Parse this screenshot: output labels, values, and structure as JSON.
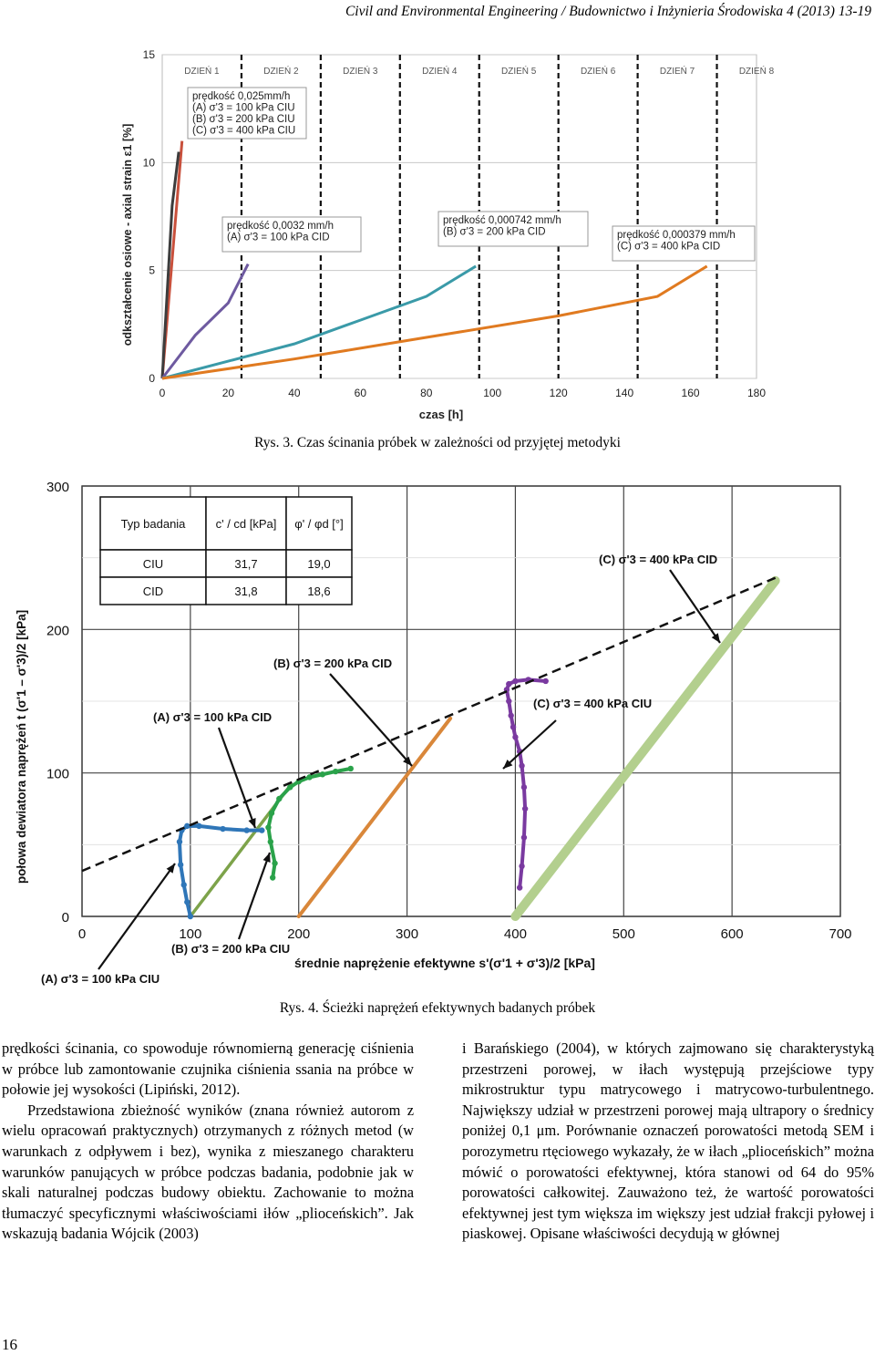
{
  "header": "Civil and Environmental Engineering / Budownictwo i Inżynieria Środowiska  4 (2013) 13-19",
  "figure3": {
    "caption": "Rys. 3. Czas ścinania próbek w zależności od przyjętej metodyki",
    "chart_data": {
      "type": "line",
      "xlabel": "czas [h]",
      "ylabel": "odkształcenie osiowe - axial strain ε1 [%]",
      "xlim": [
        0,
        180
      ],
      "ylim": [
        0,
        15
      ],
      "xticks": [
        0,
        20,
        40,
        60,
        80,
        100,
        120,
        140,
        160,
        180
      ],
      "yticks": [
        0,
        5,
        10,
        15
      ],
      "day_labels": [
        "DZIEŃ 1",
        "DZIEŃ 2",
        "DZIEŃ 3",
        "DZIEŃ 4",
        "DZIEŃ 5",
        "DZIEŃ 6",
        "DZIEŃ 7",
        "DZIEŃ 8"
      ],
      "day_lines": [
        24,
        48,
        72,
        96,
        120,
        144,
        168
      ],
      "annotations": [
        {
          "lines": [
            "prędkość 0,025mm/h",
            "(A) σ'3 = 100 kPa CIU",
            "(B) σ'3 = 200 kPa CIU",
            "(C) σ'3 = 400 kPa CIU"
          ]
        },
        {
          "lines": [
            "prędkość 0,0032 mm/h",
            "(A) σ'3 = 100 kPa CID"
          ]
        },
        {
          "lines": [
            "prędkość 0,000742 mm/h",
            "(B) σ'3 = 200 kPa CID"
          ]
        },
        {
          "lines": [
            "prędkość 0,000379 mm/h",
            "(C) σ'3 = 400 kPa CID"
          ]
        }
      ],
      "series": [
        {
          "color": "#c8503c",
          "x": [
            0,
            3,
            6
          ],
          "y": [
            0,
            5.5,
            11
          ]
        },
        {
          "color": "#3c3c3c",
          "x": [
            0,
            1.5,
            3,
            5
          ],
          "y": [
            0,
            4,
            8,
            10.5
          ]
        },
        {
          "color": "#6e5aa0",
          "x": [
            0,
            10,
            20,
            26
          ],
          "y": [
            0,
            2,
            3.5,
            5.3
          ]
        },
        {
          "color": "#3a9aa8",
          "x": [
            0,
            20,
            40,
            60,
            80,
            95
          ],
          "y": [
            0,
            0.8,
            1.6,
            2.7,
            3.8,
            5.2
          ]
        },
        {
          "color": "#e07a20",
          "x": [
            0,
            40,
            80,
            120,
            150,
            165
          ],
          "y": [
            0,
            0.9,
            1.9,
            2.9,
            3.8,
            5.2
          ]
        }
      ]
    }
  },
  "figure4": {
    "caption": "Rys. 4. Ścieżki naprężeń efektywnych badanych próbek",
    "chart_data": {
      "type": "scatter",
      "xlabel": "średnie naprężenie efektywne s'(σ'1 + σ'3)/2 [kPa]",
      "ylabel": "połowa dewiatora naprężeń t (σ'1 – σ'3)/2 [kPa]",
      "xlim": [
        0,
        700
      ],
      "ylim": [
        0,
        300
      ],
      "xticks": [
        0,
        100,
        200,
        300,
        400,
        500,
        600,
        700
      ],
      "yticks": [
        0,
        100,
        200,
        300
      ],
      "table": {
        "headers": [
          "Typ badania",
          "c' / cd [kPa]",
          "φ' / φd [°]"
        ],
        "rows": [
          [
            "CIU",
            "31,7",
            "19,0"
          ],
          [
            "CID",
            "31,8",
            "18,6"
          ]
        ]
      },
      "labels": {
        "a_cid": "(A) σ'3 = 100 kPa CID",
        "b_cid": "(B) σ'3 = 200 kPa CID",
        "c_cid": "(C) σ'3 = 400 kPa CID",
        "c_ciu": "(C) σ'3 = 400 kPa CIU",
        "b_ciu": "(B) σ'3 = 200 kPa CIU",
        "a_ciu": "(A) σ'3 = 100 kPa CIU"
      },
      "envelope": {
        "x": [
          0,
          640
        ],
        "y": [
          31.7,
          236
        ]
      },
      "series": [
        {
          "color": "#7da34a",
          "x": [
            100,
            193
          ],
          "y": [
            0,
            92
          ]
        },
        {
          "color": "#d9873a",
          "x": [
            200,
            340
          ],
          "y": [
            0,
            138
          ]
        },
        {
          "color": "#b3cf8e",
          "x": [
            400,
            640
          ],
          "y": [
            0,
            234
          ]
        },
        {
          "color": "#2f76b8",
          "x": [
            100,
            97,
            94,
            91,
            90,
            92,
            97,
            108,
            130,
            152,
            166
          ],
          "y": [
            0,
            10,
            22,
            36,
            52,
            60,
            63,
            63,
            61,
            60,
            60
          ]
        },
        {
          "color": "#2aa24a",
          "x": [
            176,
            178,
            174,
            172,
            175,
            182,
            192,
            200,
            210,
            222,
            234,
            248
          ],
          "y": [
            27,
            37,
            52,
            62,
            72,
            82,
            90,
            94,
            97,
            99,
            101,
            103
          ]
        },
        {
          "color": "#7a3aa0",
          "x": [
            404,
            406,
            408,
            409,
            408,
            406,
            404,
            400,
            398,
            396,
            394,
            392,
            394,
            400,
            412,
            428
          ],
          "y": [
            20,
            35,
            55,
            75,
            90,
            105,
            115,
            125,
            132,
            140,
            150,
            158,
            162,
            164,
            165,
            164
          ]
        }
      ]
    }
  },
  "text": {
    "left": [
      "prędkości ścinania, co spowoduje równomierną generację ciśnienia w próbce lub zamontowanie czujnika ciśnienia ssania na próbce w połowie jej wysokości (Lipiński, 2012).",
      "Przedstawiona zbieżność wyników (znana również autorom z wielu opracowań praktycznych) otrzymanych z różnych metod (w warunkach z odpływem i bez), wynika z mieszanego charakteru warunków panujących w próbce podczas badania, podobnie jak w skali naturalnej podczas budowy obiektu. Zachowanie to można tłumaczyć specyficznymi właściwościami iłów „plioceńskich”. Jak wskazują badania Wójcik (2003)"
    ],
    "right": [
      "i Barańskiego (2004), w których zajmowano się charakterystyką przestrzeni porowej, w iłach występują przejściowe typy mikrostruktur typu matrycowego i matrycowo-turbulentnego. Największy udział w przestrzeni porowej mają ultrapory o średnicy poniżej 0,1 μm. Porównanie oznaczeń porowatości metodą SEM i porozymetru rtęciowego wykazały, że w iłach „plioceńskich” można mówić o porowatości efektywnej, która stanowi od 64 do 95% porowatości całkowitej. Zauważono też, że wartość porowatości efektywnej jest tym większa im większy jest udział frakcji pyłowej i piaskowej. Opisane właściwości decydują w głównej"
    ]
  },
  "page_number": "16"
}
